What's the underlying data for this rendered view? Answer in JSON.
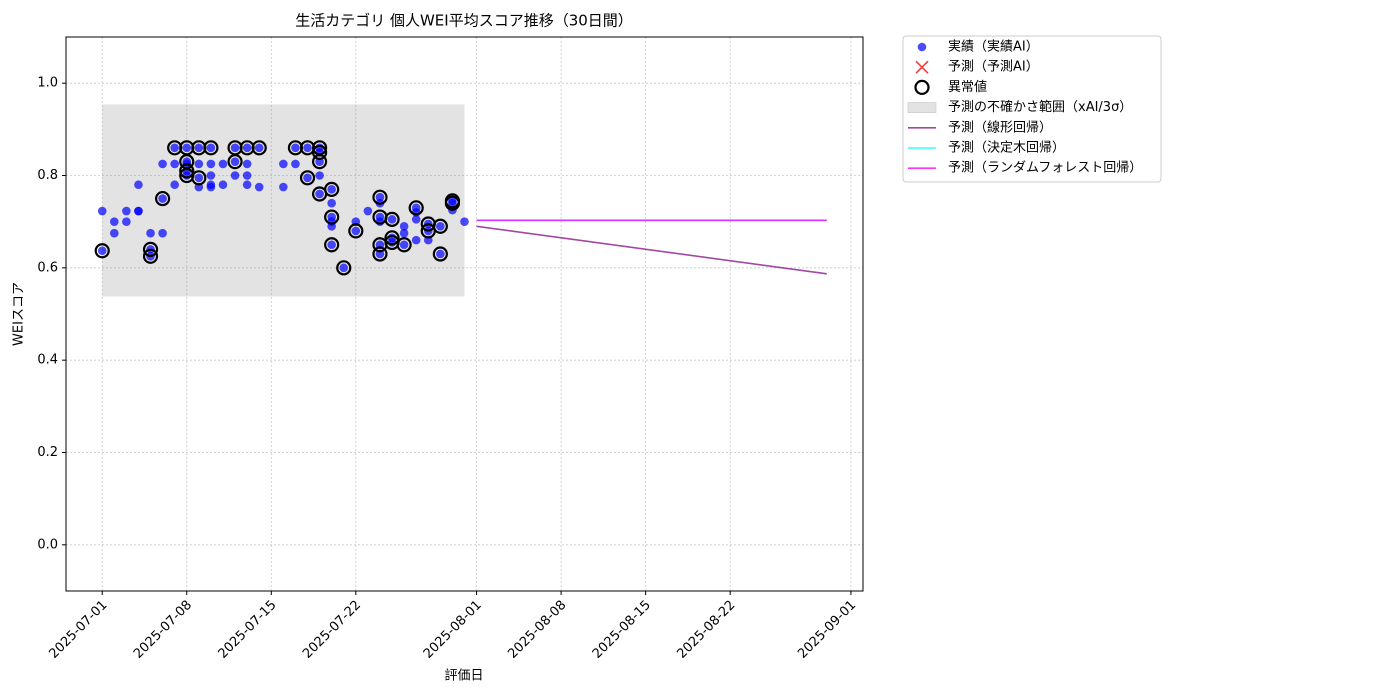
{
  "chart_data": {
    "type": "scatter",
    "title": "生活カテゴリ 個人WEI平均スコア推移（30日間）",
    "xlabel": "評価日",
    "ylabel": "WEIスコア",
    "xlim": [
      "2025-06-28",
      "2025-09-02"
    ],
    "ylim": [
      -0.1,
      1.1
    ],
    "xticks": [
      "2025-07-01",
      "2025-07-08",
      "2025-07-15",
      "2025-07-22",
      "2025-08-01",
      "2025-08-08",
      "2025-08-15",
      "2025-08-22",
      "2025-09-01"
    ],
    "yticks": [
      {
        "value": 0,
        "label": "0.0"
      },
      0.2,
      0.4,
      0.6,
      0.8,
      {
        "value": 1,
        "label": "1.0"
      }
    ],
    "grid": true,
    "legend": "outside upper right",
    "series": [
      {
        "name": "実績（実績AI）",
        "kind": "point",
        "color": "#0000ff",
        "x": [
          "2025-07-01",
          "2025-07-01",
          "2025-07-02",
          "2025-07-02",
          "2025-07-03",
          "2025-07-03",
          "2025-07-04",
          "2025-07-04",
          "2025-07-04",
          "2025-07-05",
          "2025-07-05",
          "2025-07-05",
          "2025-07-06",
          "2025-07-06",
          "2025-07-06",
          "2025-07-07",
          "2025-07-07",
          "2025-07-07",
          "2025-07-08",
          "2025-07-08",
          "2025-07-08",
          "2025-07-08",
          "2025-07-08",
          "2025-07-09",
          "2025-07-09",
          "2025-07-09",
          "2025-07-09",
          "2025-07-10",
          "2025-07-10",
          "2025-07-10",
          "2025-07-10",
          "2025-07-10",
          "2025-07-11",
          "2025-07-11",
          "2025-07-12",
          "2025-07-12",
          "2025-07-12",
          "2025-07-13",
          "2025-07-13",
          "2025-07-13",
          "2025-07-13",
          "2025-07-14",
          "2025-07-14",
          "2025-07-16",
          "2025-07-16",
          "2025-07-17",
          "2025-07-17",
          "2025-07-18",
          "2025-07-18",
          "2025-07-19",
          "2025-07-19",
          "2025-07-19",
          "2025-07-19",
          "2025-07-19",
          "2025-07-20",
          "2025-07-20",
          "2025-07-20",
          "2025-07-20",
          "2025-07-20",
          "2025-07-20",
          "2025-07-21",
          "2025-07-22",
          "2025-07-22",
          "2025-07-23",
          "2025-07-24",
          "2025-07-24",
          "2025-07-24",
          "2025-07-24",
          "2025-07-24",
          "2025-07-24",
          "2025-07-25",
          "2025-07-25",
          "2025-07-25",
          "2025-07-26",
          "2025-07-26",
          "2025-07-26",
          "2025-07-27",
          "2025-07-27",
          "2025-07-27",
          "2025-07-27",
          "2025-07-28",
          "2025-07-28",
          "2025-07-28",
          "2025-07-29",
          "2025-07-29",
          "2025-07-30",
          "2025-07-30",
          "2025-07-30",
          "2025-07-31"
        ],
        "values": [
          0.723,
          0.637,
          0.7,
          0.675,
          0.7,
          0.723,
          0.723,
          0.78,
          0.723,
          0.675,
          0.64,
          0.625,
          0.75,
          0.675,
          0.825,
          0.78,
          0.86,
          0.825,
          0.8,
          0.86,
          0.83,
          0.81,
          0.825,
          0.795,
          0.775,
          0.86,
          0.825,
          0.86,
          0.825,
          0.8,
          0.775,
          0.78,
          0.78,
          0.825,
          0.8,
          0.86,
          0.83,
          0.86,
          0.825,
          0.8,
          0.78,
          0.86,
          0.775,
          0.825,
          0.775,
          0.86,
          0.825,
          0.86,
          0.795,
          0.86,
          0.85,
          0.83,
          0.76,
          0.8,
          0.77,
          0.74,
          0.71,
          0.65,
          0.7,
          0.69,
          0.6,
          0.68,
          0.7,
          0.723,
          0.753,
          0.71,
          0.63,
          0.74,
          0.65,
          0.7,
          0.665,
          0.705,
          0.655,
          0.65,
          0.69,
          0.675,
          0.66,
          0.73,
          0.705,
          0.72,
          0.695,
          0.68,
          0.66,
          0.63,
          0.69,
          0.74,
          0.745,
          0.725,
          0.7
        ]
      },
      {
        "name": "予測（予測AI）",
        "kind": "cross",
        "color": "#ff0000",
        "x": [],
        "values": []
      },
      {
        "name": "異常値",
        "kind": "ring",
        "color": "#000000",
        "x": [
          "2025-07-01",
          "2025-07-05",
          "2025-07-05",
          "2025-07-06",
          "2025-07-07",
          "2025-07-08",
          "2025-07-08",
          "2025-07-08",
          "2025-07-08",
          "2025-07-09",
          "2025-07-09",
          "2025-07-10",
          "2025-07-12",
          "2025-07-12",
          "2025-07-13",
          "2025-07-14",
          "2025-07-17",
          "2025-07-18",
          "2025-07-18",
          "2025-07-19",
          "2025-07-19",
          "2025-07-19",
          "2025-07-19",
          "2025-07-20",
          "2025-07-20",
          "2025-07-20",
          "2025-07-21",
          "2025-07-22",
          "2025-07-24",
          "2025-07-24",
          "2025-07-24",
          "2025-07-24",
          "2025-07-25",
          "2025-07-25",
          "2025-07-25",
          "2025-07-26",
          "2025-07-27",
          "2025-07-28",
          "2025-07-28",
          "2025-07-29",
          "2025-07-29",
          "2025-07-30",
          "2025-07-30"
        ],
        "values": [
          0.637,
          0.64,
          0.625,
          0.75,
          0.86,
          0.86,
          0.83,
          0.81,
          0.8,
          0.795,
          0.86,
          0.86,
          0.86,
          0.83,
          0.86,
          0.86,
          0.86,
          0.86,
          0.795,
          0.86,
          0.85,
          0.83,
          0.76,
          0.77,
          0.71,
          0.65,
          0.6,
          0.68,
          0.753,
          0.71,
          0.63,
          0.65,
          0.665,
          0.705,
          0.655,
          0.65,
          0.73,
          0.695,
          0.68,
          0.63,
          0.69,
          0.74,
          0.745
        ]
      },
      {
        "name": "予測の不確かさ範囲（xAI/3σ）",
        "kind": "band",
        "color": "#808080",
        "x": [
          "2025-07-01",
          "2025-07-31"
        ],
        "lower": [
          0.538,
          0.538
        ],
        "upper": [
          0.954,
          0.954
        ]
      },
      {
        "name": "予測（線形回帰）",
        "kind": "line",
        "color": "#8b1a8b",
        "x": [
          "2025-08-01",
          "2025-08-30"
        ],
        "values": [
          0.69,
          0.587
        ]
      },
      {
        "name": "予測（決定木回帰）",
        "kind": "line",
        "color": "#00ffff",
        "x": [
          "2025-08-01",
          "2025-08-30"
        ],
        "values": [
          0.703,
          0.703
        ]
      },
      {
        "name": "予測（ランダムフォレスト回帰）",
        "kind": "line",
        "color": "#ff00ff",
        "x": [
          "2025-08-01",
          "2025-08-30"
        ],
        "values": [
          0.703,
          0.703
        ]
      }
    ]
  }
}
